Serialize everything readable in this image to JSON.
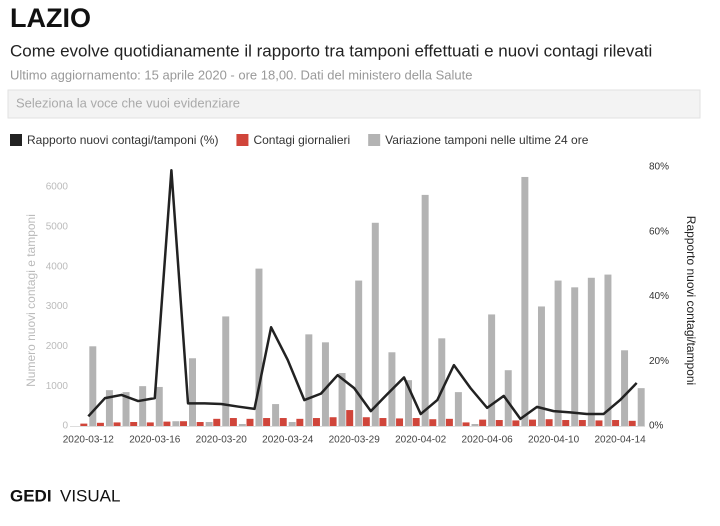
{
  "header": {
    "title": "LAZIO",
    "subtitle": "Come evolve quotidianamente il rapporto tra tamponi effettuati e nuovi contagi rilevati",
    "update": "Ultimo aggiornamento: 15 aprile 2020 - ore 18,00. Dati del ministero della Salute",
    "select_placeholder": "Seleziona la voce che vuoi evidenziare"
  },
  "chart_data": {
    "type": "bar",
    "categories": [
      "2020-03-12",
      null,
      null,
      null,
      "2020-03-16",
      null,
      null,
      null,
      "2020-03-20",
      null,
      null,
      null,
      "2020-03-24",
      null,
      null,
      null,
      "2020-03-29",
      null,
      null,
      null,
      "2020-04-02",
      null,
      null,
      null,
      "2020-04-06",
      null,
      null,
      null,
      "2020-04-10",
      null,
      null,
      null,
      "2020-04-14",
      null
    ],
    "series": [
      {
        "name": "Rapporto nuovi contagi/tamponi (%)",
        "type": "line",
        "axis": "y2",
        "color": "#222222",
        "values": [
          3,
          8.6,
          9.6,
          7.7,
          8.6,
          79,
          7,
          7,
          6.8,
          6,
          5.3,
          30.5,
          20.4,
          8,
          10,
          15.7,
          11.7,
          4.6,
          9.9,
          15,
          3.7,
          8,
          18.8,
          11.7,
          5.6,
          9.3,
          2.2,
          5.9,
          4.6,
          4.2,
          3.7,
          3.7,
          8,
          13.3
        ]
      },
      {
        "name": "Contagi giornalieri",
        "type": "bar",
        "color": "#d0453a",
        "values": [
          60,
          80,
          90,
          100,
          90,
          110,
          120,
          100,
          180,
          200,
          180,
          200,
          200,
          180,
          200,
          220,
          400,
          220,
          200,
          190,
          200,
          170,
          180,
          90,
          160,
          150,
          140,
          160,
          170,
          150,
          150,
          140,
          150,
          130
        ]
      },
      {
        "name": "Variazione tamponi nelle ultime 24 ore",
        "type": "bar",
        "color": "#b3b3b3",
        "values": [
          2000,
          900,
          850,
          1000,
          980,
          120,
          1700,
          100,
          2750,
          50,
          3950,
          550,
          100,
          2300,
          2100,
          1330,
          3650,
          5100,
          1850,
          1150,
          5800,
          2200,
          850,
          50,
          2800,
          1400,
          6250,
          3000,
          3650,
          3480,
          3720,
          3800,
          1900,
          950
        ]
      }
    ],
    "ylabel": "Numero nuovi contagi e tamponi",
    "y2label": "Rapporto nuovi contagi/tamponi",
    "ylim": [
      0,
      6500
    ],
    "yticks": [
      0,
      1000,
      2000,
      3000,
      4000,
      5000,
      6000
    ],
    "y2lim": [
      0,
      80
    ],
    "y2ticks": [
      {
        "value": 0,
        "label": "0%"
      },
      {
        "value": 20,
        "label": "20%"
      },
      {
        "value": 40,
        "label": "40%"
      },
      {
        "value": 60,
        "label": "60%"
      },
      {
        "value": 80,
        "label": "80%"
      }
    ]
  },
  "footer": {
    "brand_bold": "GEDI",
    "brand": "VISUAL"
  }
}
